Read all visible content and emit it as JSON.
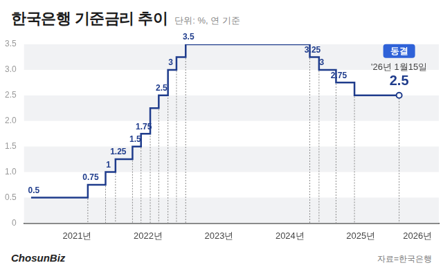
{
  "chart_data": {
    "type": "line",
    "title": "한국은행 기준금리 추이",
    "subtitle": "단위: %, 연 기준",
    "source": "자료=한국은행",
    "brand": "ChosunBiz",
    "x": [
      2020.85,
      2021.65,
      2021.9,
      2022.04,
      2022.28,
      2022.4,
      2022.53,
      2022.65,
      2022.78,
      2022.9,
      2023.03,
      2024.78,
      2024.91,
      2025.15,
      2025.41,
      2026.04
    ],
    "values": [
      0.5,
      0.75,
      1,
      1.25,
      1.5,
      1.75,
      2.25,
      2.5,
      3,
      3.25,
      3.5,
      3.25,
      3,
      2.75,
      2.5,
      2.5
    ],
    "value_labels": [
      "0.5",
      "0.75",
      "1",
      "1.25",
      "1.5",
      "1.75",
      null,
      "2.5",
      "3",
      null,
      "3.5",
      "3.25",
      "3",
      "2.75",
      null,
      "2.5"
    ],
    "color": "#1f3c8c",
    "line_style": "step",
    "data_labels": true,
    "annotation": {
      "badge": "동결",
      "text": "'26년 1월15일"
    },
    "xlim": [
      2020.75,
      2026.6
    ],
    "xticks": [
      {
        "value": 2021.5,
        "label": "2021년"
      },
      {
        "value": 2022.5,
        "label": "2022년"
      },
      {
        "value": 2023.5,
        "label": "2023년"
      },
      {
        "value": 2024.5,
        "label": "2024년"
      },
      {
        "value": 2025.5,
        "label": "2025년"
      },
      {
        "value": 2026.3,
        "label": "2026년"
      }
    ],
    "ylim": [
      0,
      3.5
    ],
    "yticks": [
      0,
      0.5,
      {
        "value": 1,
        "label": "1.0"
      },
      1.5,
      {
        "value": 2,
        "label": "2.0"
      },
      2.5,
      {
        "value": 3,
        "label": "3.0"
      },
      3.5
    ],
    "grid": true
  }
}
